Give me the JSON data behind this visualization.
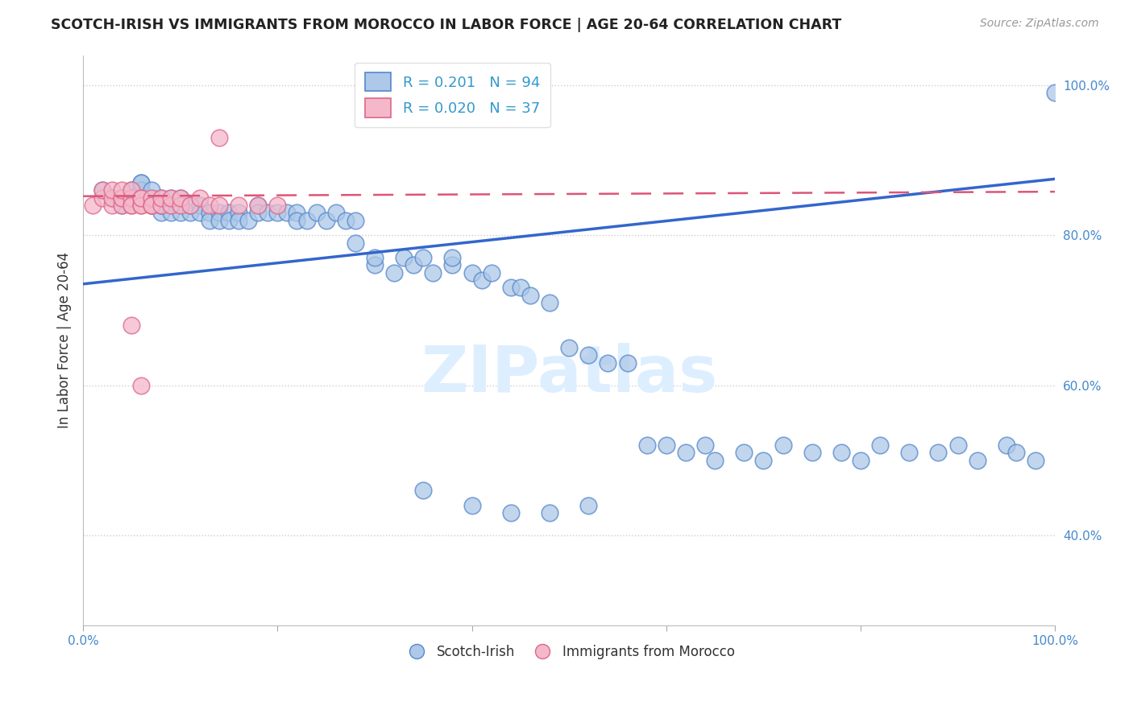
{
  "title": "SCOTCH-IRISH VS IMMIGRANTS FROM MOROCCO IN LABOR FORCE | AGE 20-64 CORRELATION CHART",
  "source": "Source: ZipAtlas.com",
  "ylabel": "In Labor Force | Age 20-64",
  "xlim": [
    0.0,
    1.0
  ],
  "ylim": [
    0.28,
    1.04
  ],
  "xticks": [
    0.0,
    0.2,
    0.4,
    0.6,
    0.8,
    1.0
  ],
  "xticklabels": [
    "0.0%",
    "",
    "",
    "",
    "",
    "100.0%"
  ],
  "yticks": [
    0.4,
    0.6,
    0.8,
    1.0
  ],
  "yticklabels": [
    "40.0%",
    "60.0%",
    "80.0%",
    "100.0%"
  ],
  "grid_color": "#cccccc",
  "scotch_irish_color": "#adc8e8",
  "scotch_irish_edge": "#5588cc",
  "morocco_color": "#f5b8cb",
  "morocco_edge": "#dd6688",
  "blue_line_color": "#3366cc",
  "pink_line_color": "#dd5577",
  "legend_R_blue": "R = 0.201",
  "legend_N_blue": "N = 94",
  "legend_R_pink": "R = 0.020",
  "legend_N_pink": "N = 37",
  "blue_line_y_start": 0.735,
  "blue_line_y_end": 0.875,
  "pink_line_y_start": 0.852,
  "pink_line_y_end": 0.858,
  "scotch_irish_x": [
    0.02,
    0.03,
    0.04,
    0.05,
    0.05,
    0.06,
    0.06,
    0.06,
    0.07,
    0.07,
    0.07,
    0.07,
    0.08,
    0.08,
    0.08,
    0.08,
    0.09,
    0.09,
    0.09,
    0.1,
    0.1,
    0.1,
    0.11,
    0.11,
    0.12,
    0.12,
    0.13,
    0.13,
    0.14,
    0.14,
    0.15,
    0.15,
    0.16,
    0.16,
    0.17,
    0.18,
    0.18,
    0.19,
    0.2,
    0.21,
    0.22,
    0.22,
    0.23,
    0.24,
    0.25,
    0.26,
    0.27,
    0.28,
    0.28,
    0.3,
    0.3,
    0.32,
    0.33,
    0.34,
    0.35,
    0.36,
    0.38,
    0.38,
    0.4,
    0.41,
    0.42,
    0.44,
    0.45,
    0.46,
    0.48,
    0.5,
    0.52,
    0.54,
    0.56,
    0.58,
    0.6,
    0.62,
    0.64,
    0.65,
    0.68,
    0.7,
    0.72,
    0.75,
    0.78,
    0.8,
    0.82,
    0.85,
    0.88,
    0.9,
    0.92,
    0.95,
    0.96,
    0.98,
    1.0,
    0.35,
    0.4,
    0.44,
    0.48,
    0.52
  ],
  "scotch_irish_y": [
    0.86,
    0.85,
    0.84,
    0.86,
    0.85,
    0.87,
    0.86,
    0.87,
    0.84,
    0.85,
    0.86,
    0.84,
    0.83,
    0.84,
    0.85,
    0.84,
    0.84,
    0.85,
    0.83,
    0.84,
    0.85,
    0.83,
    0.83,
    0.84,
    0.84,
    0.83,
    0.83,
    0.82,
    0.83,
    0.82,
    0.83,
    0.82,
    0.83,
    0.82,
    0.82,
    0.84,
    0.83,
    0.83,
    0.83,
    0.83,
    0.83,
    0.82,
    0.82,
    0.83,
    0.82,
    0.83,
    0.82,
    0.82,
    0.79,
    0.76,
    0.77,
    0.75,
    0.77,
    0.76,
    0.77,
    0.75,
    0.76,
    0.77,
    0.75,
    0.74,
    0.75,
    0.73,
    0.73,
    0.72,
    0.71,
    0.65,
    0.64,
    0.63,
    0.63,
    0.52,
    0.52,
    0.51,
    0.52,
    0.5,
    0.51,
    0.5,
    0.52,
    0.51,
    0.51,
    0.5,
    0.52,
    0.51,
    0.51,
    0.52,
    0.5,
    0.52,
    0.51,
    0.5,
    0.99,
    0.46,
    0.44,
    0.43,
    0.43,
    0.44
  ],
  "morocco_x": [
    0.01,
    0.02,
    0.02,
    0.03,
    0.03,
    0.03,
    0.04,
    0.04,
    0.04,
    0.04,
    0.05,
    0.05,
    0.05,
    0.05,
    0.06,
    0.06,
    0.06,
    0.06,
    0.07,
    0.07,
    0.07,
    0.08,
    0.08,
    0.09,
    0.09,
    0.1,
    0.1,
    0.11,
    0.12,
    0.13,
    0.14,
    0.16,
    0.18,
    0.2,
    0.14,
    0.05,
    0.06
  ],
  "morocco_y": [
    0.84,
    0.85,
    0.86,
    0.84,
    0.85,
    0.86,
    0.85,
    0.84,
    0.85,
    0.86,
    0.84,
    0.85,
    0.86,
    0.84,
    0.84,
    0.85,
    0.84,
    0.85,
    0.84,
    0.85,
    0.84,
    0.84,
    0.85,
    0.84,
    0.85,
    0.84,
    0.85,
    0.84,
    0.85,
    0.84,
    0.84,
    0.84,
    0.84,
    0.84,
    0.93,
    0.68,
    0.6
  ]
}
